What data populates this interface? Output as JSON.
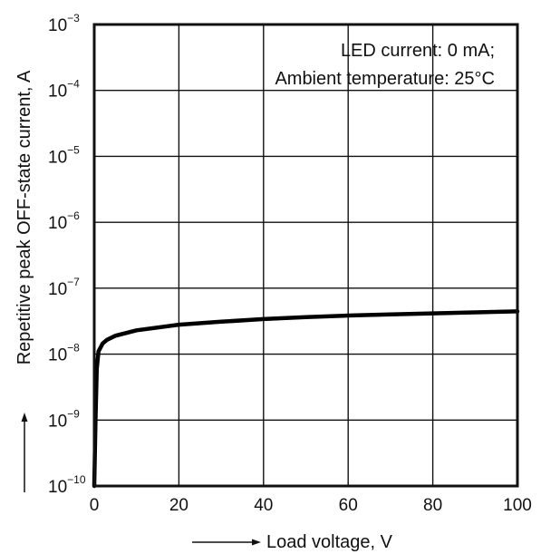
{
  "chart_data": {
    "type": "line",
    "xlabel": "Load voltage, V",
    "ylabel": "Repetitive peak OFF-state current, A",
    "xlim": [
      0,
      100
    ],
    "ylim": [
      1e-10,
      0.001
    ],
    "y_scale": "log",
    "grid": true,
    "x_ticks": [
      0,
      20,
      40,
      60,
      80,
      100
    ],
    "x_tick_labels": [
      "0",
      "20",
      "40",
      "60",
      "80",
      "100"
    ],
    "y_ticks": [
      {
        "base": "10",
        "exponent": "−3",
        "value": 0.001
      },
      {
        "base": "10",
        "exponent": "−4",
        "value": 0.0001
      },
      {
        "base": "10",
        "exponent": "−5",
        "value": 1e-05
      },
      {
        "base": "10",
        "exponent": "−6",
        "value": 1e-06
      },
      {
        "base": "10",
        "exponent": "−7",
        "value": 1e-07
      },
      {
        "base": "10",
        "exponent": "−8",
        "value": 1e-08
      },
      {
        "base": "10",
        "exponent": "−9",
        "value": 1e-09
      },
      {
        "base": "10",
        "exponent": "−10",
        "value": 1e-10
      }
    ],
    "annotations": [
      "LED current: 0 mA;",
      "Ambient temperature: 25°C"
    ],
    "series": [
      {
        "x": [
          0,
          0.3,
          0.6,
          1,
          2,
          3,
          5,
          10,
          20,
          30,
          40,
          50,
          60,
          70,
          80,
          90,
          100
        ],
        "y": [
          1e-10,
          1e-09,
          6e-09,
          1.1e-08,
          1.45e-08,
          1.65e-08,
          1.9e-08,
          2.3e-08,
          2.8e-08,
          3.1e-08,
          3.4e-08,
          3.65e-08,
          3.85e-08,
          4e-08,
          4.15e-08,
          4.3e-08,
          4.45e-08
        ]
      }
    ]
  },
  "colors": {
    "line": "#000000",
    "frame": "#111111",
    "grid": "#111111",
    "text": "#111111"
  }
}
